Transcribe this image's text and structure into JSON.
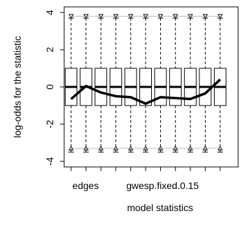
{
  "chart_data": {
    "type": "box",
    "xlabel": "model statistics",
    "ylabel": "log-odds for the statistic",
    "ylim": [
      -4.3,
      4.3
    ],
    "yticks": [
      -4,
      -2,
      0,
      2,
      4
    ],
    "categories": [
      "edges",
      "",
      "",
      "",
      "gwesp.fixed.0.15",
      "",
      "",
      "",
      "",
      "",
      ""
    ],
    "shown_tick_labels": [
      "edges",
      "gwesp.fixed.0.15"
    ],
    "boxes": [
      {
        "whisker_low": -3.5,
        "q1": -1.0,
        "median": 0.0,
        "q3": 1.0,
        "whisker_high": 3.7
      },
      {
        "whisker_low": -3.5,
        "q1": -1.0,
        "median": 0.0,
        "q3": 1.0,
        "whisker_high": 3.7
      },
      {
        "whisker_low": -3.5,
        "q1": -1.0,
        "median": 0.0,
        "q3": 1.0,
        "whisker_high": 3.7
      },
      {
        "whisker_low": -3.5,
        "q1": -1.0,
        "median": 0.0,
        "q3": 1.0,
        "whisker_high": 3.7
      },
      {
        "whisker_low": -3.5,
        "q1": -1.0,
        "median": 0.0,
        "q3": 1.0,
        "whisker_high": 3.7
      },
      {
        "whisker_low": -3.5,
        "q1": -1.0,
        "median": 0.0,
        "q3": 1.0,
        "whisker_high": 3.7
      },
      {
        "whisker_low": -3.5,
        "q1": -1.0,
        "median": 0.0,
        "q3": 1.0,
        "whisker_high": 3.7
      },
      {
        "whisker_low": -3.5,
        "q1": -1.0,
        "median": 0.0,
        "q3": 1.0,
        "whisker_high": 3.7
      },
      {
        "whisker_low": -3.5,
        "q1": -1.0,
        "median": 0.0,
        "q3": 1.0,
        "whisker_high": 3.7
      },
      {
        "whisker_low": -3.5,
        "q1": -1.0,
        "median": 0.0,
        "q3": 1.0,
        "whisker_high": 3.7
      },
      {
        "whisker_low": -3.5,
        "q1": -1.0,
        "median": 0.0,
        "q3": 1.0,
        "whisker_high": 3.7
      }
    ],
    "upper_markers": [
      3.8,
      3.8,
      3.8,
      3.8,
      3.8,
      3.8,
      3.8,
      3.8,
      3.8,
      3.8,
      3.8
    ],
    "lower_markers": [
      -3.3,
      -3.3,
      -3.3,
      -3.3,
      -3.3,
      -3.3,
      -3.3,
      -3.3,
      -3.3,
      -3.3,
      -3.3
    ],
    "observed_line": [
      -0.65,
      0.05,
      -0.3,
      -0.5,
      -0.55,
      -0.9,
      -0.55,
      -0.6,
      -0.65,
      -0.35,
      0.4
    ],
    "colors": {
      "box": "#000000",
      "observed": "#000000",
      "reference_line": "#bbbbbb"
    }
  }
}
